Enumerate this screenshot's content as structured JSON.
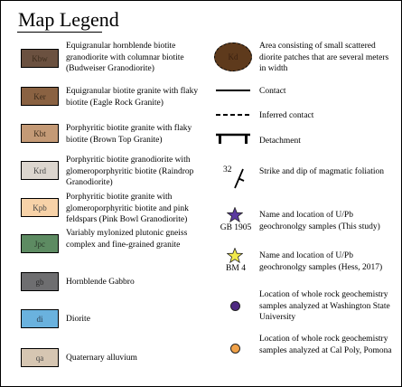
{
  "title": "Map Legend",
  "units": [
    {
      "code": "Kbw",
      "color": "#6b5140",
      "text_color": "#3a2a1a",
      "description": "Equigranular hornblende biotite granodiorite with columnar biotite (Budweiser Granodiorite)"
    },
    {
      "code": "Ker",
      "color": "#8a6242",
      "text_color": "#3a2a1a",
      "description": "Equigranular biotite granite with flaky biotite (Eagle Rock Granite)"
    },
    {
      "code": "Kbt",
      "color": "#c49a76",
      "text_color": "#3a2a1a",
      "description": "Porphyritic biotite granite with flaky biotite (Brown Top Granite)"
    },
    {
      "code": "Krd",
      "color": "#dcd6cf",
      "text_color": "#444444",
      "description": "Porphyritic biotite granodiorite with glomeroporphyritic biotite (Raindrop Granodiorite)"
    },
    {
      "code": "Kpb",
      "color": "#f7d2a8",
      "text_color": "#444444",
      "description": "Porphyritic biotite granite with glomeroporphyritic biotite and pink feldspars (Pink Bowl Granodiorite)"
    },
    {
      "code": "Jpc",
      "color": "#5d8b62",
      "text_color": "#2a3a2a",
      "description": "Variably mylonized plutonic gneiss complex and fine-grained granite"
    },
    {
      "code": "gb",
      "color": "#6e6e70",
      "text_color": "#2a2a2a",
      "description": "Hornblende Gabbro"
    },
    {
      "code": "di",
      "color": "#6ab2de",
      "text_color": "#2a3a4a",
      "description": "Diorite"
    },
    {
      "code": "qa",
      "color": "#d6c6b2",
      "text_color": "#444444",
      "description": "Quaternary alluvium"
    }
  ],
  "symbols": {
    "diorite_patches": {
      "code": "Kd",
      "color": "#5e3a1c",
      "description": "Area consisting of small scattered diorite patches that are several meters in width"
    },
    "contact": {
      "description": "Contact"
    },
    "inferred_contact": {
      "description": "Inferred contact"
    },
    "detachment": {
      "description": "Detachment"
    },
    "foliation": {
      "value": "32",
      "description": "Strike and dip of magmatic foliation"
    },
    "upb_this_study": {
      "label": "GB 1905",
      "color": "#5b3aa0",
      "description": "Name and location of U/Pb geochronolgy samples (This study)"
    },
    "upb_hess": {
      "label": "BM 4",
      "color": "#f2ea4a",
      "description": "Name and location of U/Pb geochronolgy samples (Hess, 2017)"
    },
    "wsu_samples": {
      "color": "#4f2a82",
      "description": "Location of whole rock geochemistry samples analyzed at Washington State University"
    },
    "calpoly_samples": {
      "color": "#f0a148",
      "description": "Location of whole rock geochemistry samples analyzed at Cal Poly, Pomona"
    }
  }
}
